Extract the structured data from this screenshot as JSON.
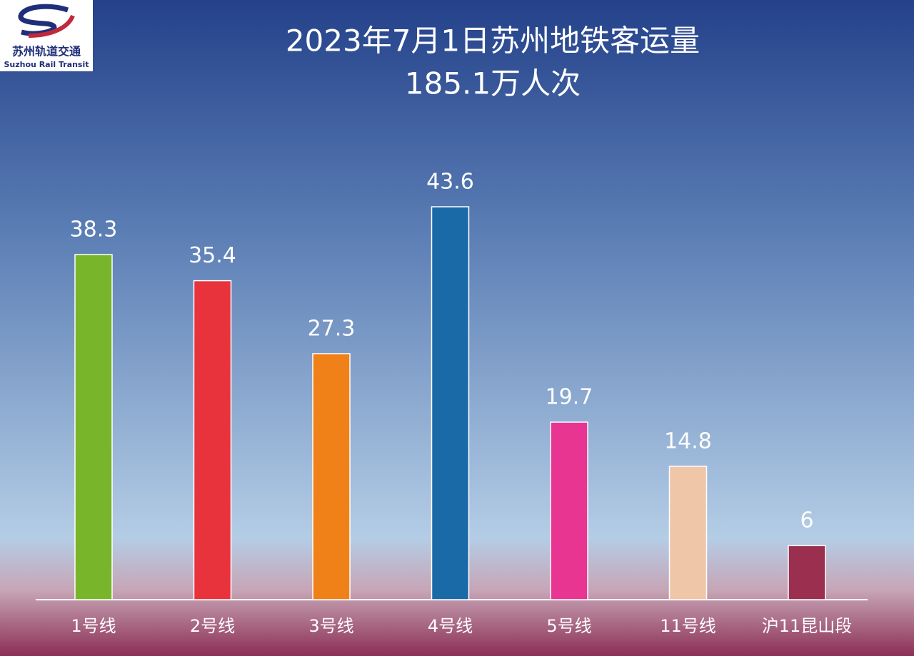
{
  "logo": {
    "name": "苏州轨道交通",
    "english": "Suzhou Rail Transit"
  },
  "chart_data": {
    "type": "bar",
    "title": "2023年7月1日苏州地铁客运量",
    "subtitle": "185.1万人次",
    "categories": [
      "1号线",
      "2号线",
      "3号线",
      "4号线",
      "5号线",
      "11号线",
      "沪11昆山段"
    ],
    "values": [
      38.3,
      35.4,
      27.3,
      43.6,
      19.7,
      14.8,
      6
    ],
    "colors": [
      "#79b52a",
      "#e8323c",
      "#ef8118",
      "#1b6aa8",
      "#e83591",
      "#f0c6a8",
      "#9b2f50"
    ]
  }
}
